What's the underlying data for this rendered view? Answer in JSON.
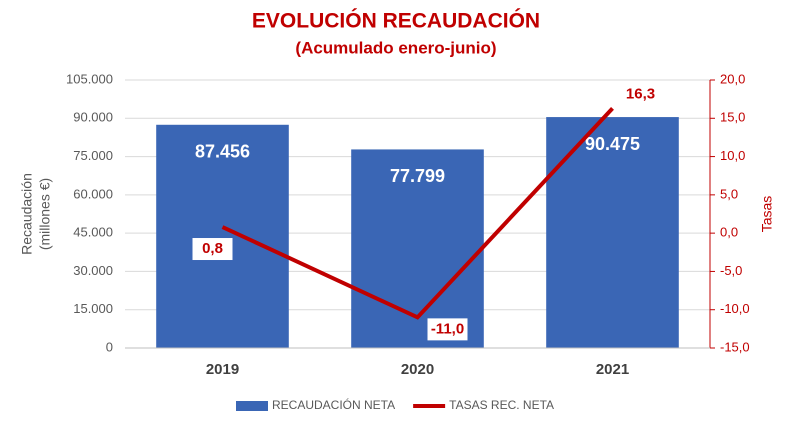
{
  "chart_data": {
    "type": "bar",
    "title": "EVOLUCIÓN RECAUDACIÓN",
    "subtitle": "(Acumulado enero-junio)",
    "ylabel": [
      "Recaudación",
      "(millones €)"
    ],
    "y2label": "Tasas",
    "categories": [
      "2019",
      "2020",
      "2021"
    ],
    "series": [
      {
        "name": "RECAUDACIÓN NETA",
        "type": "bar",
        "color": "#3a66b5",
        "values": [
          87456,
          77799,
          90475
        ],
        "value_labels": [
          "87.456",
          "77.799",
          "90.475"
        ]
      },
      {
        "name": "TASAS REC. NETA",
        "type": "line",
        "axis": "y2",
        "color": "#c00000",
        "values": [
          0.8,
          -11.0,
          16.3
        ],
        "value_labels": [
          "0,8",
          "-11,0",
          "16,3"
        ]
      }
    ],
    "ylim": [
      0,
      105000
    ],
    "yticks": [
      {
        "value": 0,
        "label": "0"
      },
      {
        "value": 15000,
        "label": "15.000"
      },
      {
        "value": 30000,
        "label": "30.000"
      },
      {
        "value": 45000,
        "label": "45.000"
      },
      {
        "value": 60000,
        "label": "60.000"
      },
      {
        "value": 75000,
        "label": "75.000"
      },
      {
        "value": 90000,
        "label": "90.000"
      },
      {
        "value": 105000,
        "label": "105.000"
      }
    ],
    "y2lim": [
      -15,
      20
    ],
    "y2ticks": [
      {
        "value": -15,
        "label": "-15,0"
      },
      {
        "value": -10,
        "label": "-10,0"
      },
      {
        "value": -5,
        "label": "-5,0"
      },
      {
        "value": 0,
        "label": "0,0"
      },
      {
        "value": 5,
        "label": "5,0"
      },
      {
        "value": 10,
        "label": "10,0"
      },
      {
        "value": 15,
        "label": "15,0"
      },
      {
        "value": 20,
        "label": "20,0"
      }
    ],
    "grid": true,
    "legend": "bottom"
  }
}
